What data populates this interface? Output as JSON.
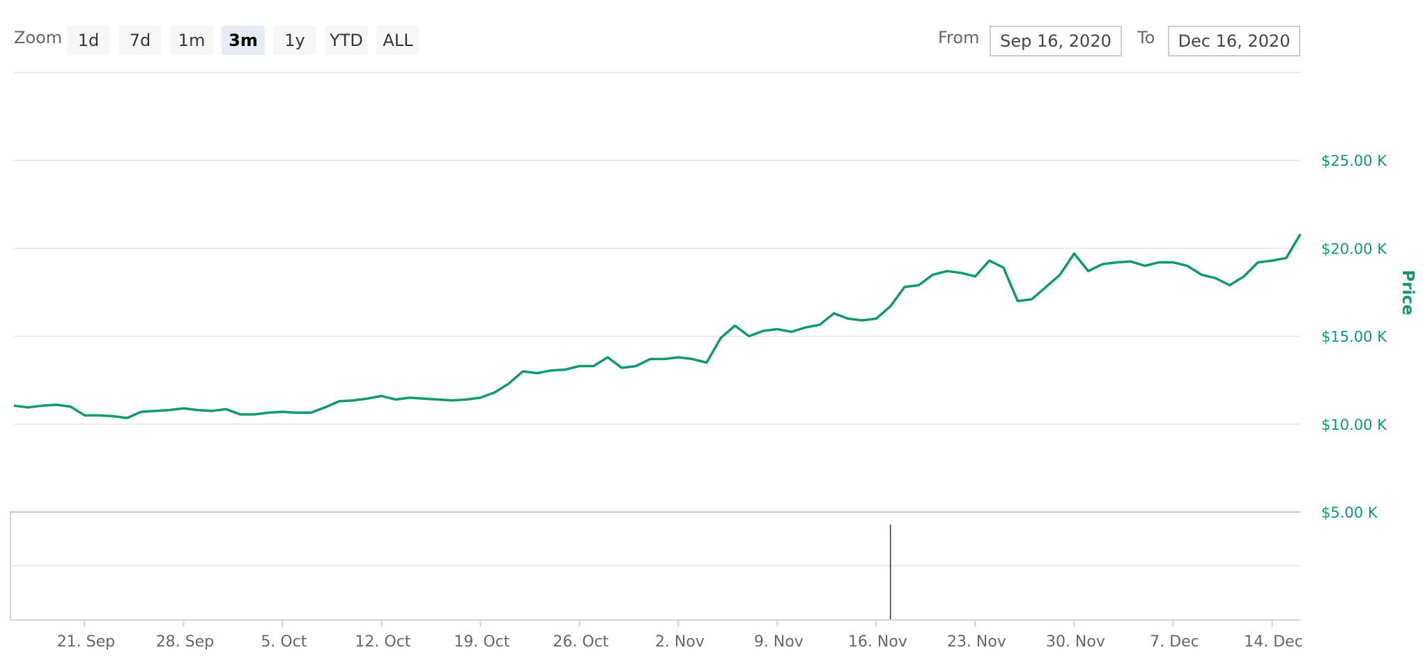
{
  "toolbar": {
    "zoom_label": "Zoom",
    "zoom_buttons": [
      "1d",
      "7d",
      "1m",
      "3m",
      "1y",
      "YTD",
      "ALL"
    ],
    "selected_zoom": "3m",
    "from_label": "From",
    "from_value": "Sep 16, 2020",
    "to_label": "To",
    "to_value": "Dec 16, 2020"
  },
  "colors": {
    "series": "#109970",
    "grid": "#e6e6e6",
    "axis_text": "#666666",
    "zoom_active_bg": "#e6ebf5"
  },
  "chart_data": {
    "type": "line",
    "ylabel": "Price",
    "ylim": [
      5000,
      30000
    ],
    "yticks": [
      {
        "value": 25000,
        "label": "$25.00 K"
      },
      {
        "value": 20000,
        "label": "$20.00 K"
      },
      {
        "value": 15000,
        "label": "$15.00 K"
      },
      {
        "value": 10000,
        "label": "$10.00 K"
      },
      {
        "value": 5000,
        "label": "$5.00 K"
      }
    ],
    "xlim": [
      "2020-09-16",
      "2020-12-16"
    ],
    "xticks": [
      {
        "date": "2020-09-21",
        "label": "21. Sep"
      },
      {
        "date": "2020-09-28",
        "label": "28. Sep"
      },
      {
        "date": "2020-10-05",
        "label": "5. Oct"
      },
      {
        "date": "2020-10-12",
        "label": "12. Oct"
      },
      {
        "date": "2020-10-19",
        "label": "19. Oct"
      },
      {
        "date": "2020-10-26",
        "label": "26. Oct"
      },
      {
        "date": "2020-11-02",
        "label": "2. Nov"
      },
      {
        "date": "2020-11-09",
        "label": "9. Nov"
      },
      {
        "date": "2020-11-16",
        "label": "16. Nov"
      },
      {
        "date": "2020-11-23",
        "label": "23. Nov"
      },
      {
        "date": "2020-11-30",
        "label": "30. Nov"
      },
      {
        "date": "2020-12-07",
        "label": "7. Dec"
      },
      {
        "date": "2020-12-14",
        "label": "14. Dec"
      }
    ],
    "grid": true,
    "navigator_marker": "2020-11-17",
    "series": [
      {
        "x": [
          "2020-09-16",
          "2020-09-17",
          "2020-09-18",
          "2020-09-19",
          "2020-09-20",
          "2020-09-21",
          "2020-09-22",
          "2020-09-23",
          "2020-09-24",
          "2020-09-25",
          "2020-09-26",
          "2020-09-27",
          "2020-09-28",
          "2020-09-29",
          "2020-09-30",
          "2020-10-01",
          "2020-10-02",
          "2020-10-03",
          "2020-10-04",
          "2020-10-05",
          "2020-10-06",
          "2020-10-07",
          "2020-10-08",
          "2020-10-09",
          "2020-10-10",
          "2020-10-11",
          "2020-10-12",
          "2020-10-13",
          "2020-10-14",
          "2020-10-15",
          "2020-10-16",
          "2020-10-17",
          "2020-10-18",
          "2020-10-19",
          "2020-10-20",
          "2020-10-21",
          "2020-10-22",
          "2020-10-23",
          "2020-10-24",
          "2020-10-25",
          "2020-10-26",
          "2020-10-27",
          "2020-10-28",
          "2020-10-29",
          "2020-10-30",
          "2020-10-31",
          "2020-11-01",
          "2020-11-02",
          "2020-11-03",
          "2020-11-04",
          "2020-11-05",
          "2020-11-06",
          "2020-11-07",
          "2020-11-08",
          "2020-11-09",
          "2020-11-10",
          "2020-11-11",
          "2020-11-12",
          "2020-11-13",
          "2020-11-14",
          "2020-11-15",
          "2020-11-16",
          "2020-11-17",
          "2020-11-18",
          "2020-11-19",
          "2020-11-20",
          "2020-11-21",
          "2020-11-22",
          "2020-11-23",
          "2020-11-24",
          "2020-11-25",
          "2020-11-26",
          "2020-11-27",
          "2020-11-28",
          "2020-11-29",
          "2020-11-30",
          "2020-12-01",
          "2020-12-02",
          "2020-12-03",
          "2020-12-04",
          "2020-12-05",
          "2020-12-06",
          "2020-12-07",
          "2020-12-08",
          "2020-12-09",
          "2020-12-10",
          "2020-12-11",
          "2020-12-12",
          "2020-12-13",
          "2020-12-14",
          "2020-12-15",
          "2020-12-16"
        ],
        "values": [
          11050,
          10950,
          11050,
          11100,
          11000,
          10500,
          10500,
          10450,
          10350,
          10700,
          10750,
          10800,
          10900,
          10800,
          10750,
          10850,
          10550,
          10550,
          10650,
          10700,
          10650,
          10650,
          10950,
          11300,
          11350,
          11450,
          11600,
          11400,
          11500,
          11450,
          11400,
          11350,
          11400,
          11500,
          11800,
          12300,
          13000,
          12900,
          13050,
          13100,
          13300,
          13300,
          13800,
          13200,
          13300,
          13700,
          13700,
          13800,
          13700,
          13500,
          14900,
          15600,
          15000,
          15300,
          15400,
          15250,
          15500,
          15650,
          16300,
          16000,
          15900,
          16000,
          16700,
          17800,
          17900,
          18500,
          18700,
          18600,
          18400,
          19300,
          18900,
          17000,
          17100,
          17800,
          18500,
          19700,
          18700,
          19100,
          19200,
          19250,
          19000,
          19200,
          19200,
          19000,
          18500,
          18300,
          17900,
          18400,
          19200,
          19300,
          19450,
          20800
        ]
      }
    ]
  }
}
